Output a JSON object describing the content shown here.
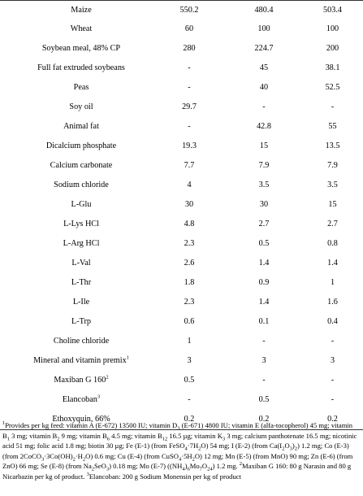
{
  "rows": [
    {
      "name": "Maize",
      "v1": "550.2",
      "v2": "480.4",
      "v3": "503.4"
    },
    {
      "name": "Wheat",
      "v1": "60",
      "v2": "100",
      "v3": "100"
    },
    {
      "name": "Soybean meal, 48% CP",
      "v1": "280",
      "v2": "224.7",
      "v3": "200"
    },
    {
      "name": "Full fat extruded soybeans",
      "v1": "-",
      "v2": "45",
      "v3": "38.1"
    },
    {
      "name": "Peas",
      "v1": "-",
      "v2": "40",
      "v3": "52.5"
    },
    {
      "name": "Soy oil",
      "v1": "29.7",
      "v2": "-",
      "v3": "-"
    },
    {
      "name": "Animal fat",
      "v1": "-",
      "v2": "42.8",
      "v3": "55"
    },
    {
      "name": "Dicalcium phosphate",
      "v1": "19.3",
      "v2": "15",
      "v3": "13.5"
    },
    {
      "name": "Calcium carbonate",
      "v1": "7.7",
      "v2": "7.9",
      "v3": "7.9"
    },
    {
      "name": "Sodium chloride",
      "v1": "4",
      "v2": "3.5",
      "v3": "3.5"
    },
    {
      "name": "L-Glu",
      "v1": "30",
      "v2": "30",
      "v3": "15"
    },
    {
      "name": "L-Lys HCl",
      "v1": "4.8",
      "v2": "2.7",
      "v3": "2.7"
    },
    {
      "name": "L-Arg HCl",
      "v1": "2.3",
      "v2": "0.5",
      "v3": "0.8"
    },
    {
      "name": "L-Val",
      "v1": "2.6",
      "v2": "1.4",
      "v3": "1.4"
    },
    {
      "name": "L-Thr",
      "v1": "1.8",
      "v2": "0.9",
      "v3": "1"
    },
    {
      "name": "L-Ile",
      "v1": "2.3",
      "v2": "1.4",
      "v3": "1.6"
    },
    {
      "name": "L-Trp",
      "v1": "0.6",
      "v2": "0.1",
      "v3": "0.4"
    },
    {
      "name": "Choline chloride",
      "v1": "1",
      "v2": "-",
      "v3": "-"
    },
    {
      "name": "Mineral and vitamin premix",
      "sup": "1",
      "v1": "3",
      "v2": "3",
      "v3": "3"
    },
    {
      "name": "Maxiban G 160",
      "sup": "2",
      "v1": "0.5",
      "v2": "-",
      "v3": "-"
    },
    {
      "name": "Elancoban",
      "sup": "3",
      "v1": "-",
      "v2": "0.5",
      "v3": "-"
    },
    {
      "name": "Ethoxyquin, 66%",
      "v1": "0.2",
      "v2": "0.2",
      "v3": "0.2"
    }
  ],
  "footnotes": {
    "fn1_marker": "1",
    "fn1_a": "Provides per kg feed: vitamin A (E-672) 13500 IU; vitamin D",
    "fn1_a_sub": "3",
    "fn1_b": " (E-671) 4800 IU; vitamin E (alfa-tocopherol) 45 mg; vitamin B",
    "fn1_b_sub": "1",
    "fn1_c": " 3 mg; vitamin B",
    "fn1_c_sub": "2",
    "fn1_d": " 9 mg; vitamin B",
    "fn1_d_sub": "6",
    "fn1_e": " 4.5 mg; vitamin B",
    "fn1_e_sub": "12",
    "fn1_f": " 16.5 µg; vitamin K",
    "fn1_f_sub": "3",
    "fn1_g": " 3 mg; calcium panthotenate 16.5 mg; nicotinic acid 51 mg; folic acid 1.8 mg; biotin 30 µg; Fe (E-1) (from FeSO",
    "fn1_g_sub": "4",
    "fn1_h": "·7H",
    "fn1_h_sub": "2",
    "fn1_i": "O) 54 mg; I (E-2) (from Ca(I",
    "fn1_i_sub1": "2",
    "fn1_i2": "O",
    "fn1_i_sub2": "3",
    "fn1_i3": ")",
    "fn1_i_sub3": "2",
    "fn1_j": ") 1.2 mg; Co (E-3) (from 2CoCO",
    "fn1_j_sub": "3",
    "fn1_k": "·3Co(OH)",
    "fn1_k_sub": "2",
    "fn1_l": "·H",
    "fn1_l_sub": "2",
    "fn1_m": "O) 0.6 mg; Cu (E-4) (from CuSO",
    "fn1_m_sub": "4",
    "fn1_n": "·5H",
    "fn1_n_sub": "2",
    "fn1_o": "O) 12 mg; Mn (E-5) (from MnO) 90 mg; Zn (E-6) (from ZnO) 66 mg; Se (E-8) (from Na",
    "fn1_o_sub1": "2",
    "fn1_o2": "SeO",
    "fn1_o_sub2": "3",
    "fn1_p": ") 0.18 mg; Mo (E-7) ((NH",
    "fn1_p_sub1": "4",
    "fn1_p2": ")",
    "fn1_p_sub2": "6",
    "fn1_p3": "Mo",
    "fn1_p_sub3": "7",
    "fn1_p4": "O",
    "fn1_p_sub4": "24",
    "fn1_q": ") 1.2 mg. ",
    "fn2_marker": "2",
    "fn2": "Maxiban G 160: 80 g Narasin and 80 g Nicarbazin per kg of product. ",
    "fn3_marker": "3",
    "fn3": "Elancoban: 200 g Sodium Monensin per kg of product"
  }
}
